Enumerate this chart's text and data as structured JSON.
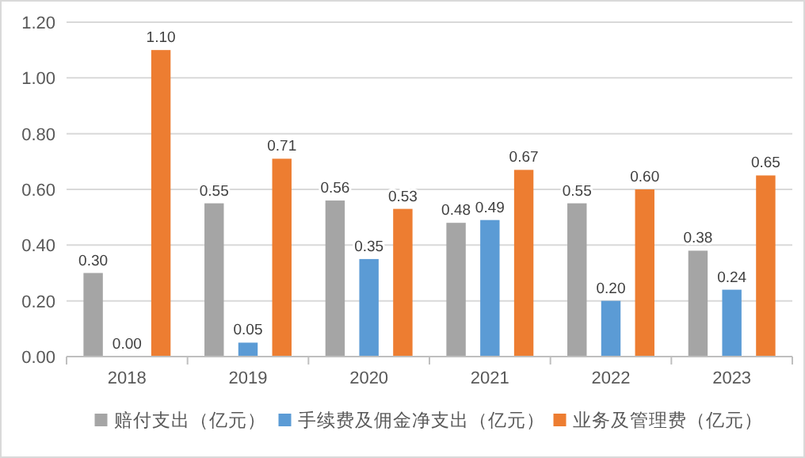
{
  "chart_data": {
    "type": "bar",
    "categories": [
      "2018",
      "2019",
      "2020",
      "2021",
      "2022",
      "2023"
    ],
    "series": [
      {
        "name": "赔付支出（亿元）",
        "color": "#a5a5a5",
        "values": [
          0.3,
          0.55,
          0.56,
          0.48,
          0.55,
          0.38
        ],
        "value_labels": [
          "0.30",
          "0.55",
          "0.56",
          "0.48",
          "0.55",
          "0.38"
        ]
      },
      {
        "name": "手续费及佣金净支出（亿元）",
        "color": "#5b9bd5",
        "values": [
          0.0,
          0.05,
          0.35,
          0.49,
          0.2,
          0.24
        ],
        "value_labels": [
          "0.00",
          "0.05",
          "0.35",
          "0.49",
          "0.20",
          "0.24"
        ]
      },
      {
        "name": "业务及管理费（亿元）",
        "color": "#ed7d31",
        "values": [
          1.1,
          0.71,
          0.53,
          0.67,
          0.6,
          0.65
        ],
        "value_labels": [
          "1.10",
          "0.71",
          "0.53",
          "0.67",
          "0.60",
          "0.65"
        ]
      }
    ],
    "ylim": [
      0,
      1.2
    ],
    "yticks": [
      {
        "value": 0,
        "label": "0.00"
      },
      {
        "value": 0.2,
        "label": "0.20"
      },
      {
        "value": 0.4,
        "label": "0.40"
      },
      {
        "value": 0.6,
        "label": "0.60"
      },
      {
        "value": 0.8,
        "label": "0.80"
      },
      {
        "value": 1.0,
        "label": "1.00"
      },
      {
        "value": 1.2,
        "label": "1.20"
      }
    ],
    "grid": "y",
    "legend": "bottom"
  }
}
